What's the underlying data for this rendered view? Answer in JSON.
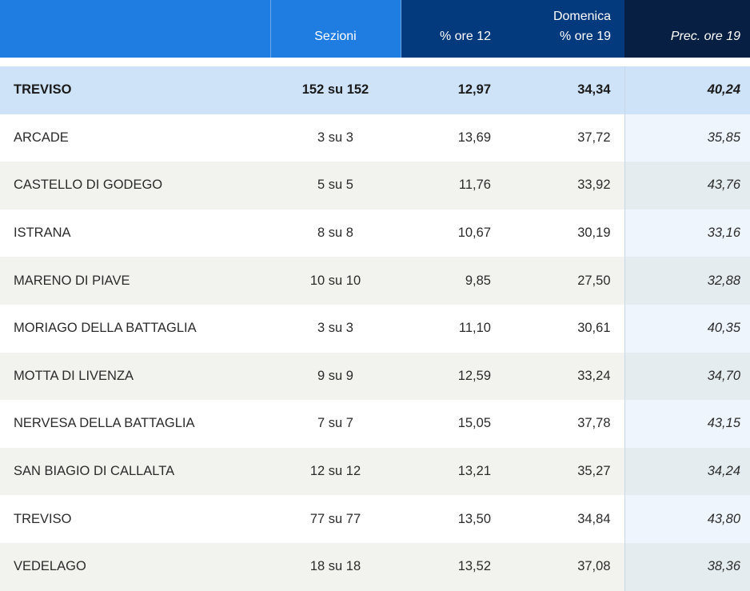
{
  "header": {
    "comune": "",
    "sezioni": "Sezioni",
    "group": "Domenica",
    "ore12": "% ore 12",
    "ore19": "% ore 19",
    "prec": "Prec. ore 19"
  },
  "total": {
    "name": "TREVISO",
    "sezioni": "152 su 152",
    "ore12": "12,97",
    "ore19": "34,34",
    "prec": "40,24"
  },
  "rows": [
    {
      "name": "ARCADE",
      "sezioni": "3 su 3",
      "ore12": "13,69",
      "ore19": "37,72",
      "prec": "35,85"
    },
    {
      "name": "CASTELLO DI GODEGO",
      "sezioni": "5 su 5",
      "ore12": "11,76",
      "ore19": "33,92",
      "prec": "43,76"
    },
    {
      "name": "ISTRANA",
      "sezioni": "8 su 8",
      "ore12": "10,67",
      "ore19": "30,19",
      "prec": "33,16"
    },
    {
      "name": "MARENO DI PIAVE",
      "sezioni": "10 su 10",
      "ore12": "9,85",
      "ore19": "27,50",
      "prec": "32,88"
    },
    {
      "name": "MORIAGO DELLA BATTAGLIA",
      "sezioni": "3 su 3",
      "ore12": "11,10",
      "ore19": "30,61",
      "prec": "40,35"
    },
    {
      "name": "MOTTA DI LIVENZA",
      "sezioni": "9 su 9",
      "ore12": "12,59",
      "ore19": "33,24",
      "prec": "34,70"
    },
    {
      "name": "NERVESA DELLA BATTAGLIA",
      "sezioni": "7 su 7",
      "ore12": "15,05",
      "ore19": "37,78",
      "prec": "43,15"
    },
    {
      "name": "SAN BIAGIO DI CALLALTA",
      "sezioni": "12 su 12",
      "ore12": "13,21",
      "ore19": "35,27",
      "prec": "34,24"
    },
    {
      "name": "TREVISO",
      "sezioni": "77 su 77",
      "ore12": "13,50",
      "ore19": "34,84",
      "prec": "43,80"
    },
    {
      "name": "VEDELAGO",
      "sezioni": "18 su 18",
      "ore12": "13,52",
      "ore19": "37,08",
      "prec": "38,36"
    }
  ]
}
